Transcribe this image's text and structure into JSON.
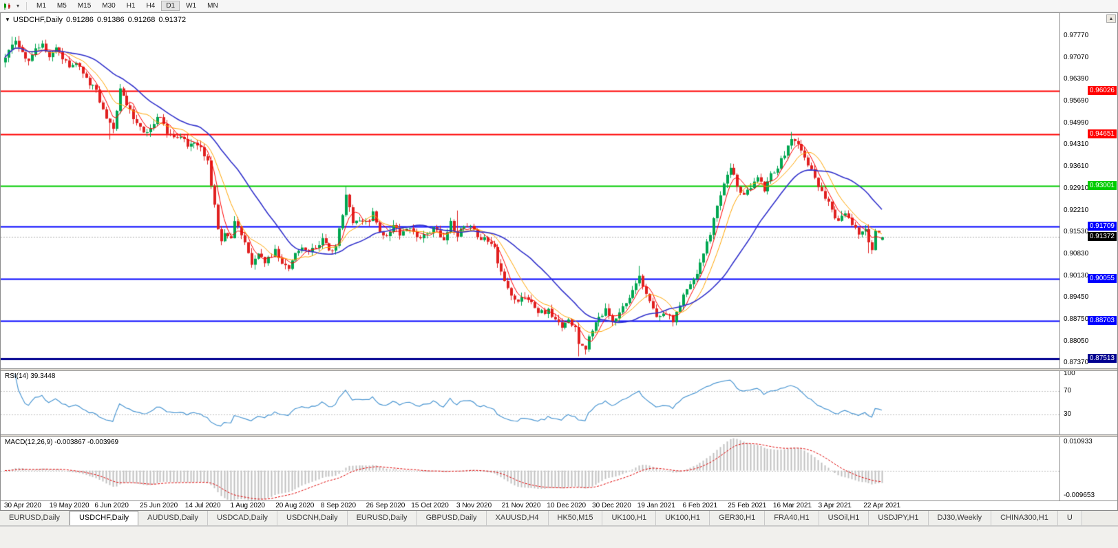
{
  "toolbar": {
    "periods": [
      "M1",
      "M5",
      "M15",
      "M30",
      "H1",
      "H4",
      "D1",
      "W1",
      "MN"
    ],
    "active_period": "D1",
    "dropdown_icon": "▾"
  },
  "chart": {
    "title": {
      "collapse_icon": "▼",
      "symbol": "USDCHF,Daily",
      "open": "0.91286",
      "high": "0.91386",
      "low": "0.91268",
      "close": "0.91372"
    },
    "scroll_up_icon": "▲",
    "axis_range": {
      "top": 0.985,
      "bottom": 0.872
    },
    "price_axis_labels": [
      "0.97770",
      "0.97070",
      "0.96390",
      "0.95690",
      "0.94990",
      "0.94310",
      "0.93610",
      "0.92910",
      "0.92210",
      "0.91530",
      "0.90830",
      "0.90130",
      "0.89450",
      "0.88750",
      "0.88050",
      "0.87370"
    ],
    "levels": [
      {
        "price": 0.96026,
        "label": "0.96026",
        "color": "#ff0000",
        "width": 2
      },
      {
        "price": 0.94651,
        "label": "0.94651",
        "color": "#ff0000",
        "width": 2
      },
      {
        "price": 0.93001,
        "label": "0.93001",
        "color": "#00cc00",
        "width": 2
      },
      {
        "price": 0.91709,
        "label": "0.91709",
        "color": "#0000ff",
        "width": 2
      },
      {
        "price": 0.90055,
        "label": "0.90055",
        "color": "#0000ff",
        "width": 2
      },
      {
        "price": 0.88703,
        "label": "0.88703",
        "color": "#0000ff",
        "width": 2
      },
      {
        "price": 0.87513,
        "label": "0.87513",
        "color": "#000090",
        "width": 3
      }
    ],
    "last_price": {
      "value": 0.91372,
      "label": "0.91372"
    },
    "date_labels": [
      "30 Apr 2020",
      "19 May 2020",
      "6 Jun 2020",
      "25 Jun 2020",
      "14 Jul 2020",
      "1 Aug 2020",
      "20 Aug 2020",
      "8 Sep 2020",
      "26 Sep 2020",
      "15 Oct 2020",
      "3 Nov 2020",
      "21 Nov 2020",
      "10 Dec 2020",
      "30 Dec 2020",
      "19 Jan 2021",
      "6 Feb 2021",
      "25 Feb 2021",
      "16 Mar 2021",
      "3 Apr 2021",
      "22 Apr 2021"
    ],
    "bars": 261,
    "close_anchors": [
      [
        0,
        0.97
      ],
      [
        1,
        0.9738
      ],
      [
        3,
        0.9752
      ],
      [
        5,
        0.9718
      ],
      [
        7,
        0.9698
      ],
      [
        9,
        0.9728
      ],
      [
        11,
        0.9744
      ],
      [
        13,
        0.9718
      ],
      [
        15,
        0.9742
      ],
      [
        17,
        0.9698
      ],
      [
        19,
        0.9682
      ],
      [
        21,
        0.9698
      ],
      [
        23,
        0.9652
      ],
      [
        25,
        0.963
      ],
      [
        27,
        0.96
      ],
      [
        28,
        0.956
      ],
      [
        30,
        0.9508
      ],
      [
        32,
        0.9478
      ],
      [
        34,
        0.9612
      ],
      [
        36,
        0.956
      ],
      [
        38,
        0.952
      ],
      [
        40,
        0.9492
      ],
      [
        42,
        0.9462
      ],
      [
        44,
        0.95
      ],
      [
        46,
        0.9522
      ],
      [
        48,
        0.9472
      ],
      [
        50,
        0.945
      ],
      [
        52,
        0.9462
      ],
      [
        54,
        0.9432
      ],
      [
        56,
        0.9446
      ],
      [
        58,
        0.942
      ],
      [
        60,
        0.9372
      ],
      [
        61,
        0.9305
      ],
      [
        62,
        0.9232
      ],
      [
        63,
        0.917
      ],
      [
        64,
        0.9132
      ],
      [
        65,
        0.916
      ],
      [
        67,
        0.914
      ],
      [
        68,
        0.918
      ],
      [
        70,
        0.9148
      ],
      [
        72,
        0.9082
      ],
      [
        73,
        0.9048
      ],
      [
        75,
        0.9092
      ],
      [
        77,
        0.9052
      ],
      [
        79,
        0.9082
      ],
      [
        80,
        0.9092
      ],
      [
        82,
        0.906
      ],
      [
        84,
        0.9042
      ],
      [
        86,
        0.9092
      ],
      [
        88,
        0.9112
      ],
      [
        90,
        0.9082
      ],
      [
        92,
        0.9112
      ],
      [
        94,
        0.913
      ],
      [
        96,
        0.9086
      ],
      [
        98,
        0.9112
      ],
      [
        100,
        0.92
      ],
      [
        101,
        0.9282
      ],
      [
        102,
        0.9232
      ],
      [
        103,
        0.9182
      ],
      [
        105,
        0.9192
      ],
      [
        107,
        0.918
      ],
      [
        109,
        0.9212
      ],
      [
        111,
        0.9162
      ],
      [
        113,
        0.9142
      ],
      [
        115,
        0.9182
      ],
      [
        117,
        0.9152
      ],
      [
        119,
        0.9162
      ],
      [
        121,
        0.915
      ],
      [
        124,
        0.914
      ],
      [
        127,
        0.9162
      ],
      [
        130,
        0.913
      ],
      [
        132,
        0.9188
      ],
      [
        134,
        0.9145
      ],
      [
        137,
        0.918
      ],
      [
        140,
        0.914
      ],
      [
        143,
        0.9128
      ],
      [
        145,
        0.9108
      ],
      [
        146,
        0.9062
      ],
      [
        148,
        0.8992
      ],
      [
        150,
        0.8952
      ],
      [
        152,
        0.8932
      ],
      [
        154,
        0.8952
      ],
      [
        156,
        0.8922
      ],
      [
        158,
        0.8892
      ],
      [
        161,
        0.8906
      ],
      [
        163,
        0.8872
      ],
      [
        165,
        0.8852
      ],
      [
        167,
        0.8872
      ],
      [
        169,
        0.8842
      ],
      [
        170,
        0.8802
      ],
      [
        172,
        0.8788
      ],
      [
        174,
        0.8842
      ],
      [
        176,
        0.8882
      ],
      [
        178,
        0.8902
      ],
      [
        180,
        0.8872
      ],
      [
        182,
        0.8892
      ],
      [
        184,
        0.8932
      ],
      [
        186,
        0.8972
      ],
      [
        188,
        0.9008
      ],
      [
        190,
        0.8962
      ],
      [
        192,
        0.8902
      ],
      [
        194,
        0.8882
      ],
      [
        196,
        0.8892
      ],
      [
        198,
        0.8872
      ],
      [
        200,
        0.893
      ],
      [
        201,
        0.8952
      ],
      [
        203,
        0.899
      ],
      [
        205,
        0.903
      ],
      [
        207,
        0.9092
      ],
      [
        209,
        0.9152
      ],
      [
        211,
        0.9232
      ],
      [
        213,
        0.9302
      ],
      [
        214,
        0.9332
      ],
      [
        215,
        0.936
      ],
      [
        217,
        0.9302
      ],
      [
        219,
        0.9272
      ],
      [
        221,
        0.9292
      ],
      [
        223,
        0.9322
      ],
      [
        225,
        0.9292
      ],
      [
        227,
        0.9338
      ],
      [
        229,
        0.9362
      ],
      [
        231,
        0.9402
      ],
      [
        233,
        0.9442
      ],
      [
        235,
        0.943
      ],
      [
        237,
        0.9392
      ],
      [
        239,
        0.9352
      ],
      [
        241,
        0.9302
      ],
      [
        243,
        0.9262
      ],
      [
        245,
        0.9222
      ],
      [
        247,
        0.9192
      ],
      [
        249,
        0.9212
      ],
      [
        251,
        0.9172
      ],
      [
        253,
        0.9152
      ],
      [
        255,
        0.9162
      ],
      [
        256,
        0.9122
      ],
      [
        257,
        0.91
      ],
      [
        258,
        0.9152
      ],
      [
        259,
        0.9145
      ],
      [
        260,
        0.91372
      ]
    ],
    "wick_overrides": [
      [
        2,
        "h",
        0.9775
      ],
      [
        4,
        "h",
        0.9768
      ],
      [
        31,
        "l",
        0.9448
      ],
      [
        101,
        "h",
        0.9298
      ],
      [
        134,
        "h",
        0.9222
      ],
      [
        170,
        "l",
        0.8758
      ],
      [
        188,
        "h",
        0.9046
      ],
      [
        215,
        "h",
        0.9372
      ],
      [
        233,
        "h",
        0.9472
      ],
      [
        256,
        "l",
        0.9086
      ]
    ],
    "last_candle": {
      "open": 0.91286,
      "high": 0.91386,
      "low": 0.91268,
      "close": 0.91372
    },
    "ma_periods": {
      "fast": 5,
      "mid": 10,
      "slow": 25
    },
    "colors": {
      "up": "#00a650",
      "down": "#e02020",
      "ma_fast": "#ff0000",
      "ma_mid": "#ffa500",
      "ma_slow": "#3232cc",
      "rsi_line": "#4a96d2",
      "macd_hist": "#c0c0c0",
      "macd_signal": "#e00000",
      "last_price_bg": "#000000"
    }
  },
  "rsi": {
    "label": "RSI(14) 39.3448",
    "period": 14,
    "levels": [
      70,
      30
    ],
    "axis_labels": [
      {
        "value": 100,
        "label": "100"
      },
      {
        "value": 70,
        "label": "70"
      },
      {
        "value": 30,
        "label": "30"
      }
    ]
  },
  "macd": {
    "label": "MACD(12,26,9) -0.003867 -0.003969",
    "fast": 12,
    "slow": 26,
    "signal": 9,
    "axis_top_label": "0.010933",
    "axis_bottom_label": "-0.009653",
    "range": {
      "top": 0.0112,
      "bottom": -0.01
    }
  },
  "tabs": {
    "active_index": 1,
    "items": [
      "EURUSD,Daily",
      "USDCHF,Daily",
      "AUDUSD,Daily",
      "USDCAD,Daily",
      "USDCNH,Daily",
      "EURUSD,Daily",
      "GBPUSD,Daily",
      "XAUUSD,H4",
      "HK50,M15",
      "UK100,H1",
      "UK100,H1",
      "GER30,H1",
      "FRA40,H1",
      "USOil,H1",
      "USDJPY,H1",
      "DJ30,Weekly",
      "CHINA300,H1",
      "U"
    ]
  }
}
